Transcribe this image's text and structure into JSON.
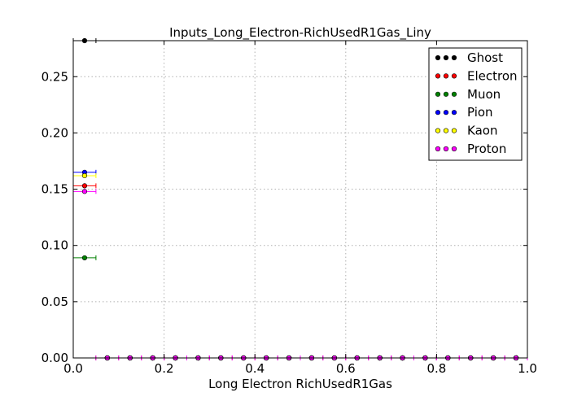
{
  "chart_data": {
    "type": "scatter",
    "title": "Inputs_Long_Electron-RichUsedR1Gas_Liny",
    "xlabel": "Long Electron RichUsedR1Gas",
    "ylabel": "",
    "xlim": [
      0.0,
      1.0
    ],
    "ylim": [
      0.0,
      0.282
    ],
    "xticks": [
      0.0,
      0.2,
      0.4,
      0.6,
      0.8,
      1.0
    ],
    "xtick_labels": [
      "0.0",
      "0.2",
      "0.4",
      "0.6",
      "0.8",
      "1.0"
    ],
    "yticks": [
      0.0,
      0.05,
      0.1,
      0.15,
      0.2,
      0.25
    ],
    "ytick_labels": [
      "0.00",
      "0.05",
      "0.10",
      "0.15",
      "0.20",
      "0.25"
    ],
    "grid": true,
    "legend_position": "top-right",
    "x": [
      0.025,
      0.075,
      0.125,
      0.175,
      0.225,
      0.275,
      0.325,
      0.375,
      0.425,
      0.475,
      0.525,
      0.575,
      0.625,
      0.675,
      0.725,
      0.775,
      0.825,
      0.875,
      0.925,
      0.975
    ],
    "xerr": 0.025,
    "series": [
      {
        "name": "Ghost",
        "color": "#000000",
        "values": [
          0.282,
          0,
          0,
          0,
          0,
          0,
          0,
          0,
          0,
          0,
          0,
          0,
          0,
          0,
          0,
          0,
          0,
          0,
          0,
          0
        ]
      },
      {
        "name": "Electron",
        "color": "#ff0000",
        "values": [
          0.153,
          0,
          0,
          0,
          0,
          0,
          0,
          0,
          0,
          0,
          0,
          0,
          0,
          0,
          0,
          0,
          0,
          0,
          0,
          0
        ]
      },
      {
        "name": "Muon",
        "color": "#008000",
        "values": [
          0.089,
          0,
          0,
          0,
          0,
          0,
          0,
          0,
          0,
          0,
          0,
          0,
          0,
          0,
          0,
          0,
          0,
          0,
          0,
          0
        ]
      },
      {
        "name": "Pion",
        "color": "#0000ff",
        "values": [
          0.165,
          0,
          0,
          0,
          0,
          0,
          0,
          0,
          0,
          0,
          0,
          0,
          0,
          0,
          0,
          0,
          0,
          0,
          0,
          0
        ]
      },
      {
        "name": "Kaon",
        "color": "#ffff00",
        "values": [
          0.162,
          0,
          0,
          0,
          0,
          0,
          0,
          0,
          0,
          0,
          0,
          0,
          0,
          0,
          0,
          0,
          0,
          0,
          0,
          0
        ]
      },
      {
        "name": "Proton",
        "color": "#ff00ff",
        "values": [
          0.148,
          0,
          0,
          0,
          0,
          0,
          0,
          0,
          0,
          0,
          0,
          0,
          0,
          0,
          0,
          0,
          0,
          0,
          0,
          0
        ]
      }
    ]
  }
}
